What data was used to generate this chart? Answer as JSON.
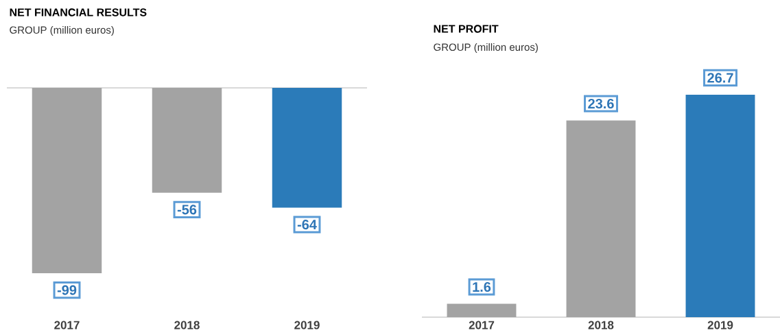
{
  "chart_data": [
    {
      "type": "bar",
      "title": "NET FINANCIAL RESULTS",
      "subtitle": "GROUP (million euros)",
      "categories": [
        "2017",
        "2018",
        "2019"
      ],
      "values": [
        -99,
        -56,
        -64
      ],
      "colors": [
        "#a3a3a3",
        "#a3a3a3",
        "#2b7bb9"
      ],
      "data_labels": true
    },
    {
      "type": "bar",
      "title": "NET PROFIT",
      "subtitle": "GROUP (million euros)",
      "categories": [
        "2017",
        "2018",
        "2019"
      ],
      "values": [
        1.6,
        23.6,
        26.7
      ],
      "colors": [
        "#a3a3a3",
        "#a3a3a3",
        "#2b7bb9"
      ],
      "data_labels": true
    }
  ]
}
